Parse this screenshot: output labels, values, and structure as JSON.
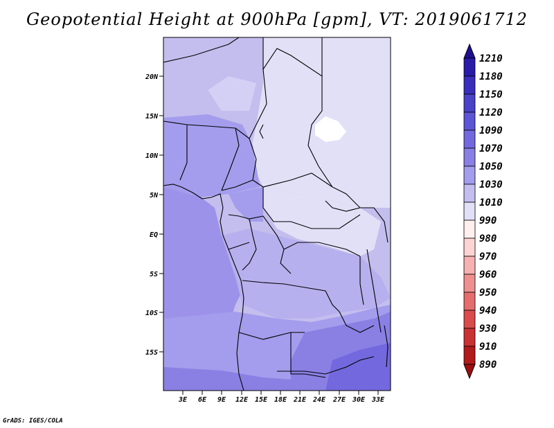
{
  "title": "Geopotential Height at 900hPa [gpm], VT: 2019061712",
  "credit": "GrADS: IGES/COLA",
  "map": {
    "lat_labels": [
      "20N",
      "15N",
      "10N",
      "5N",
      "EQ",
      "5S",
      "10S",
      "15S"
    ],
    "lon_labels": [
      "3E",
      "6E",
      "9E",
      "12E",
      "15E",
      "18E",
      "21E",
      "24E",
      "27E",
      "30E",
      "33E"
    ]
  },
  "colorbar": {
    "labels": [
      "1210",
      "1180",
      "1150",
      "1120",
      "1090",
      "1070",
      "1050",
      "1030",
      "1010",
      "990",
      "980",
      "970",
      "960",
      "950",
      "940",
      "930",
      "910",
      "890"
    ],
    "colors": [
      "#201090",
      "#2a1ca6",
      "#3a2eba",
      "#4b42c8",
      "#5d55d4",
      "#7468de",
      "#8a80e4",
      "#a49cec",
      "#c4beef",
      "#e2e0f7",
      "#fff0f0",
      "#fcd4d4",
      "#f6b2b2",
      "#ee9090",
      "#e46e6e",
      "#d84c4c",
      "#c83232",
      "#b01c1c",
      "#9a1010"
    ]
  }
}
